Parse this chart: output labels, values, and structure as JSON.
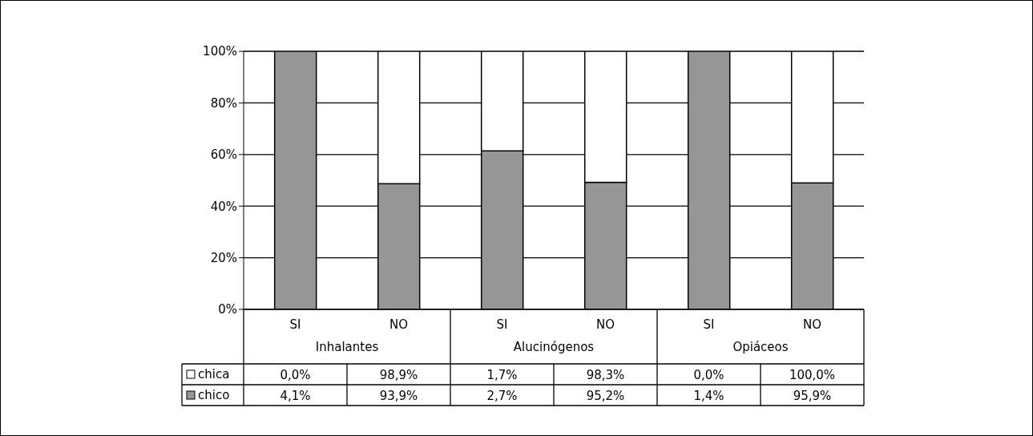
{
  "chart_data": [
    {
      "type": "bar",
      "stacked": true,
      "categories": [
        "SI",
        "NO",
        "SI",
        "NO",
        "SI",
        "NO"
      ],
      "series": [
        {
          "name": "chico",
          "color": "#969696",
          "values": [
            100,
            48.7,
            61.4,
            49.2,
            100,
            49.0
          ]
        },
        {
          "name": "chica",
          "color": "#ffffff",
          "values": [
            0,
            51.3,
            38.6,
            50.8,
            0,
            51.0
          ]
        }
      ],
      "annotations": [
        "Inhalantes",
        "Alucinógenos",
        "Opiáceos"
      ],
      "ylim": [
        0,
        100
      ],
      "yticks": [
        {
          "value": 0,
          "label": "0%"
        },
        {
          "value": 20,
          "label": "20%"
        },
        {
          "value": 40,
          "label": "40%"
        },
        {
          "value": 60,
          "label": "60%"
        },
        {
          "value": 80,
          "label": "80%"
        },
        {
          "value": 100,
          "label": "100%"
        }
      ],
      "grid": "y",
      "legend": "bottom"
    },
    {
      "type": "other",
      "annotations": [
        "0,0%",
        "98,9%",
        "1,7%",
        "98,3%",
        "0,0%",
        "100,0%",
        "4,1%",
        "93,9%",
        "2,7%",
        "95,2%",
        "1,4%",
        "95,9%"
      ]
    }
  ]
}
